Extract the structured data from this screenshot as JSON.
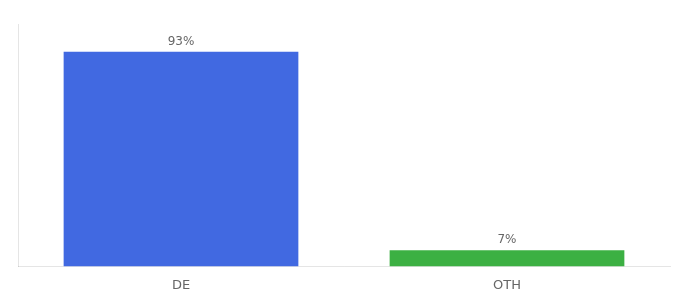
{
  "chart_data": {
    "type": "bar",
    "categories": [
      "DE",
      "OTH"
    ],
    "values": [
      93,
      7
    ],
    "value_labels": [
      "93%",
      "7%"
    ],
    "colors": [
      "#4169e1",
      "#3cb043"
    ],
    "ylim": [
      0,
      105
    ],
    "grid": false,
    "data_labels": true,
    "tick_labels": "x"
  }
}
